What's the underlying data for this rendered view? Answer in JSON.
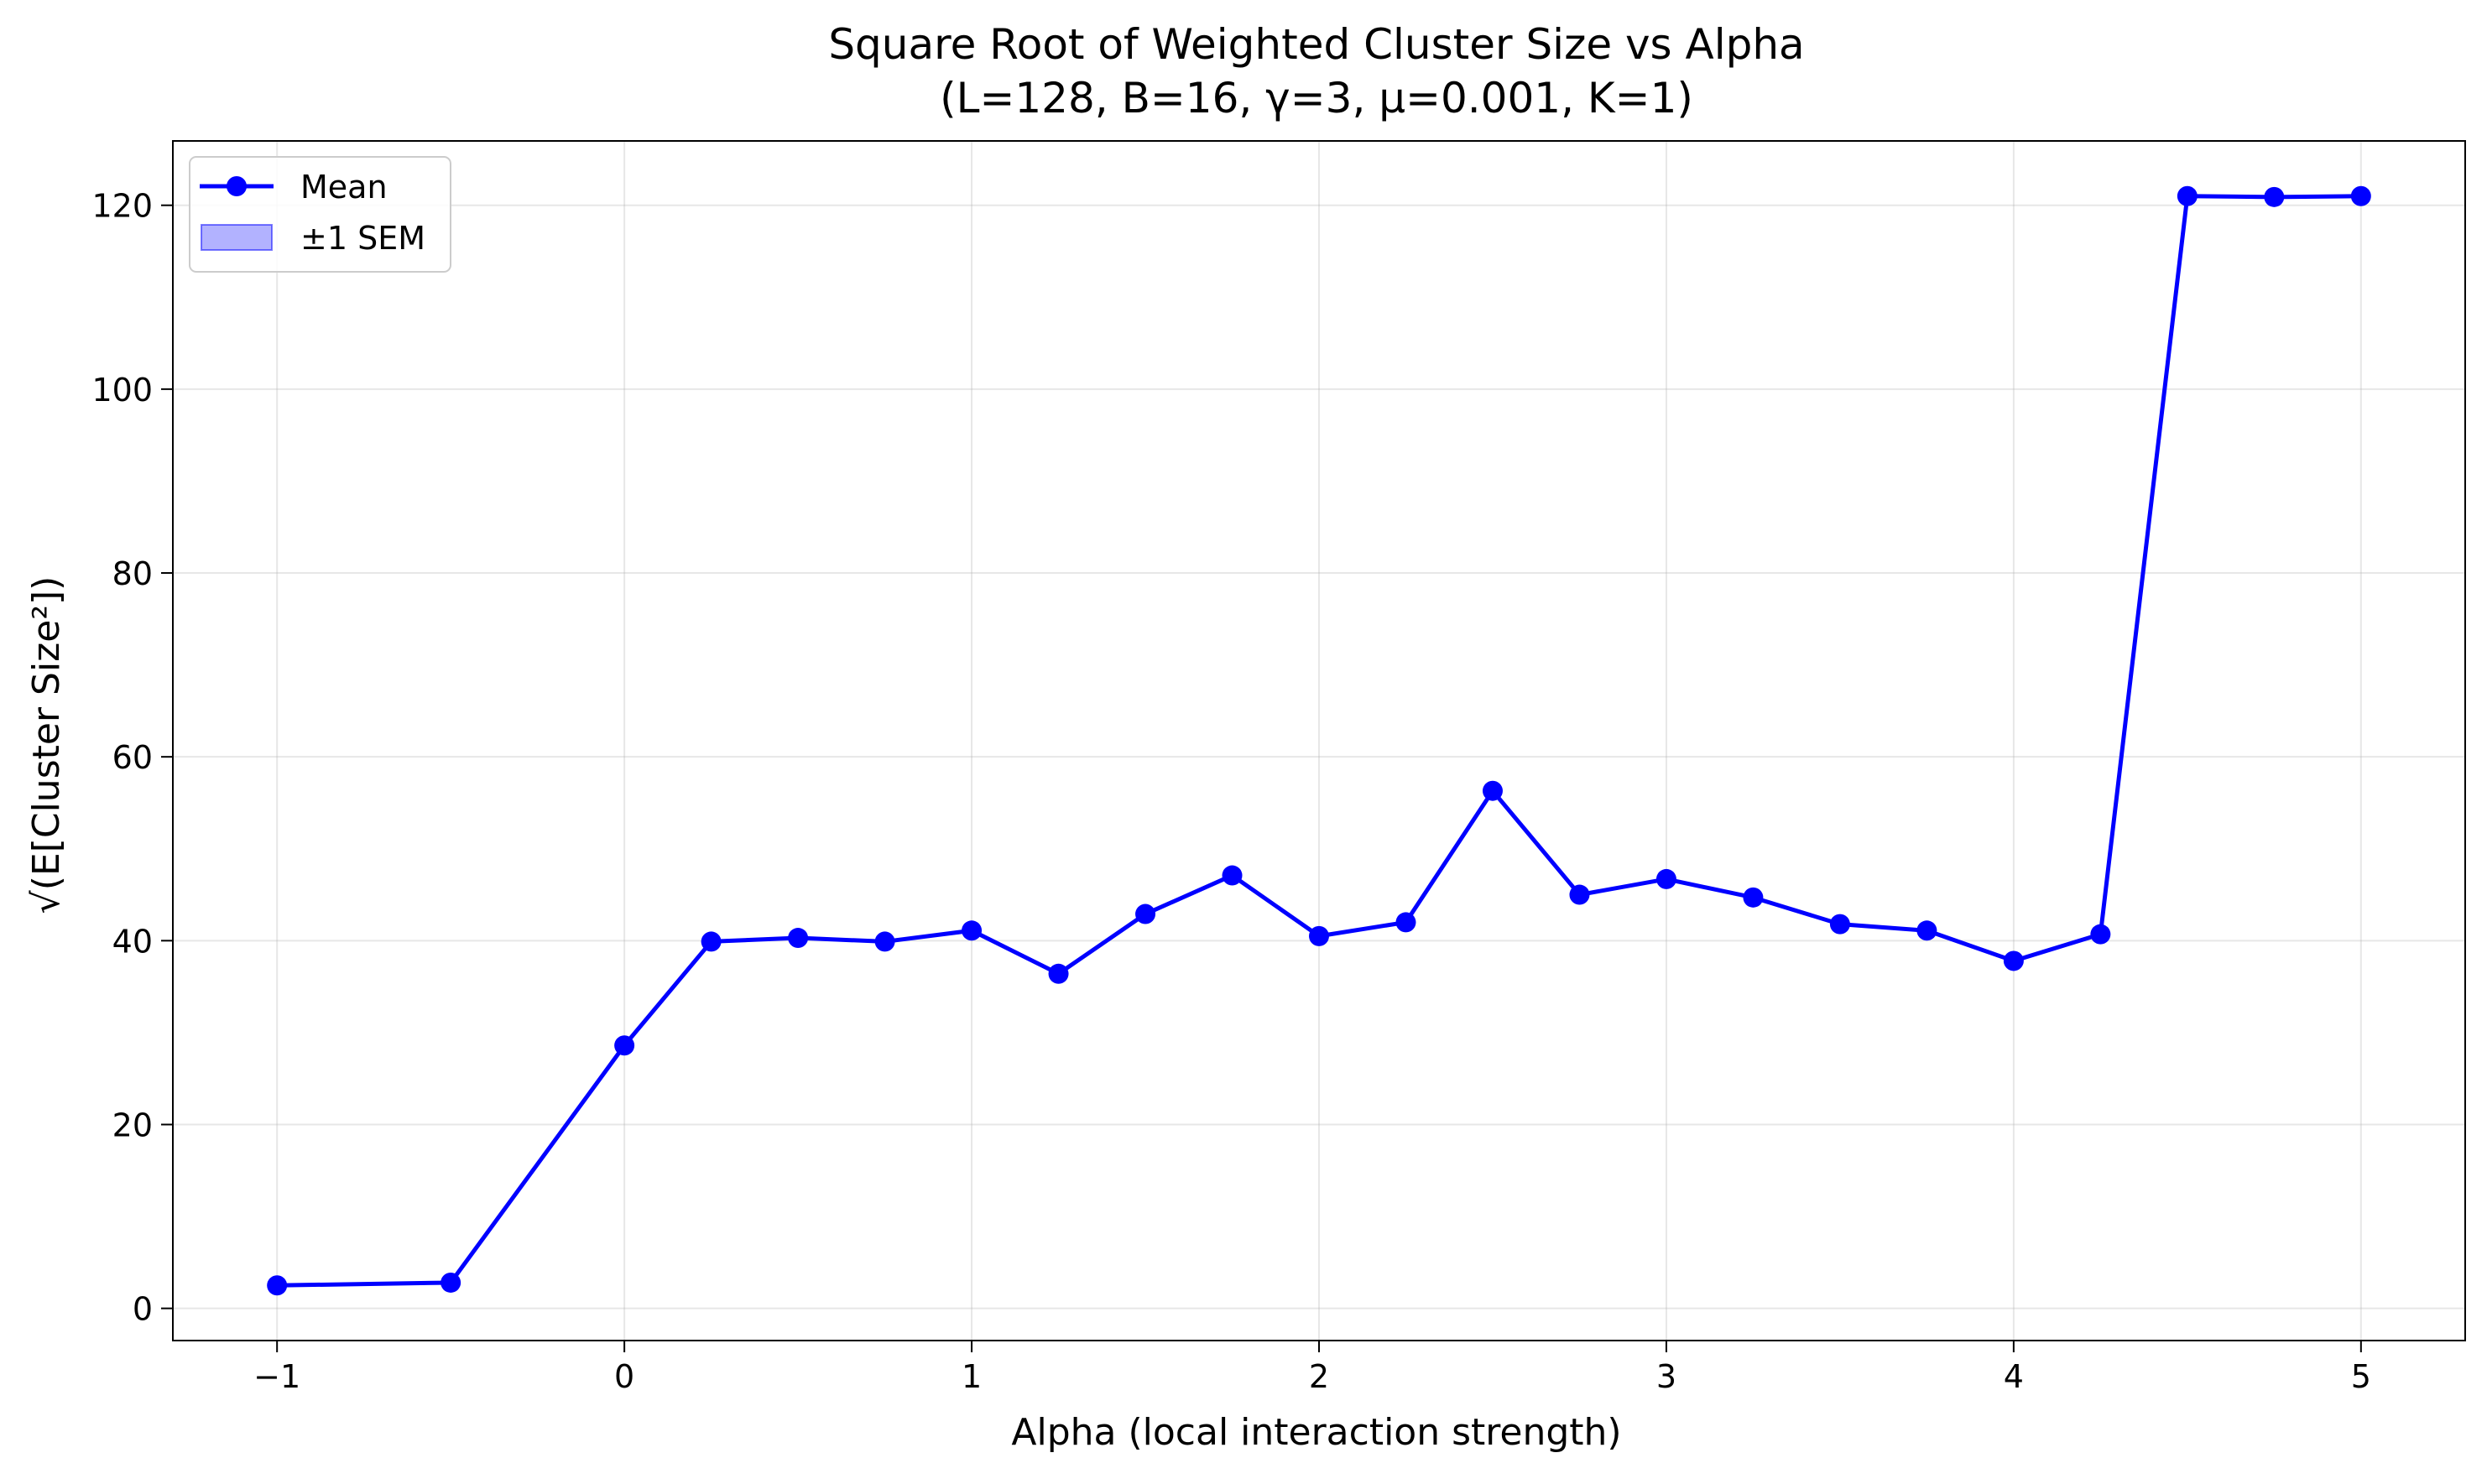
{
  "chart_data": {
    "type": "line",
    "title": "Square Root of Weighted Cluster Size vs Alpha",
    "subtitle": "(L=128, B=16, γ=3, μ=0.001, K=1)",
    "xlabel": "Alpha (local interaction strength)",
    "ylabel": "√(E[Cluster Size²])",
    "xlim": [
      -1.3,
      5.3
    ],
    "ylim": [
      -3.5,
      127
    ],
    "xticks": [
      -1,
      0,
      1,
      2,
      3,
      4,
      5
    ],
    "xtick_labels": [
      "−1",
      "0",
      "1",
      "2",
      "3",
      "4",
      "5"
    ],
    "yticks": [
      0,
      20,
      40,
      60,
      80,
      100,
      120
    ],
    "ytick_labels": [
      "0",
      "20",
      "40",
      "60",
      "80",
      "100",
      "120"
    ],
    "grid": true,
    "legend_position": "top-left",
    "series": [
      {
        "name": "Mean",
        "color": "#0000ff",
        "marker": "circle",
        "x": [
          -1,
          -0.5,
          0,
          0.25,
          0.5,
          0.75,
          1,
          1.25,
          1.5,
          1.75,
          2,
          2.25,
          2.5,
          2.75,
          3,
          3.25,
          3.5,
          3.75,
          4,
          4.25,
          4.5,
          4.75,
          5
        ],
        "y": [
          2.5,
          2.8,
          28.6,
          39.9,
          40.3,
          39.9,
          41.1,
          36.4,
          42.9,
          47.1,
          40.5,
          42.0,
          56.3,
          45.0,
          46.7,
          44.7,
          41.8,
          41.1,
          37.8,
          40.7,
          121.0,
          120.9,
          121.0
        ]
      }
    ],
    "legend": [
      {
        "label": "Mean",
        "kind": "line-marker",
        "color": "#0000ff"
      },
      {
        "label": "±1 SEM",
        "kind": "band",
        "color": "#0000ff"
      }
    ]
  }
}
